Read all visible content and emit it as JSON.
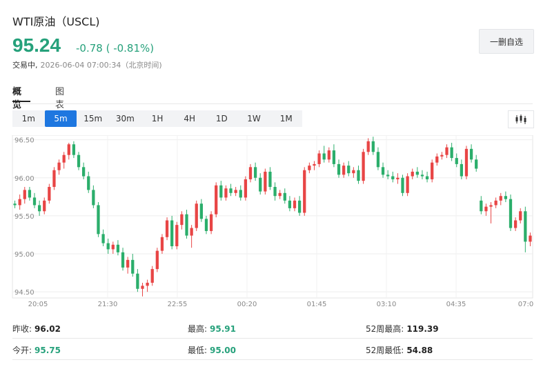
{
  "header": {
    "title": "WTI原油（USCL)",
    "price": "95.24",
    "change": "-0.78 ( -0.81%)",
    "status_label": "交易中,",
    "timestamp": "2026-06-04 07:00:34（北京时间)",
    "watchlist_button": "一删自选"
  },
  "tabs": [
    {
      "label": "概览",
      "active": true
    },
    {
      "label": "图表",
      "active": false
    }
  ],
  "periods": [
    {
      "label": "1m",
      "active": false
    },
    {
      "label": "5m",
      "active": true
    },
    {
      "label": "15m",
      "active": false
    },
    {
      "label": "30m",
      "active": false
    },
    {
      "label": "1H",
      "active": false
    },
    {
      "label": "4H",
      "active": false
    },
    {
      "label": "1D",
      "active": false
    },
    {
      "label": "1W",
      "active": false
    },
    {
      "label": "1M",
      "active": false
    }
  ],
  "chart_type_icon": "candlestick-icon",
  "chart_data": {
    "type": "candlestick",
    "ylim": [
      94.42,
      96.56
    ],
    "yticks": [
      94.5,
      95.0,
      95.5,
      96.0,
      96.5
    ],
    "ytick_labels": [
      "94.50",
      "95.00",
      "95.50",
      "96.00",
      "96.50"
    ],
    "xtick_labels": [
      "20:05",
      "21:30",
      "22:55",
      "00:20",
      "01:45",
      "03:10",
      "04:35",
      "07:0"
    ],
    "grid": true,
    "colors": {
      "up": "#e84545",
      "down": "#2bae6b"
    },
    "candles": [
      [
        95.66,
        95.7,
        95.6,
        95.64
      ],
      [
        95.64,
        95.78,
        95.58,
        95.72
      ],
      [
        95.72,
        95.88,
        95.66,
        95.84
      ],
      [
        95.84,
        95.88,
        95.7,
        95.74
      ],
      [
        95.74,
        95.8,
        95.6,
        95.64
      ],
      [
        95.64,
        95.7,
        95.5,
        95.56
      ],
      [
        95.56,
        95.74,
        95.52,
        95.7
      ],
      [
        95.7,
        95.92,
        95.66,
        95.88
      ],
      [
        95.88,
        96.14,
        95.84,
        96.1
      ],
      [
        96.1,
        96.24,
        96.04,
        96.2
      ],
      [
        96.2,
        96.34,
        96.12,
        96.3
      ],
      [
        96.3,
        96.46,
        96.24,
        96.44
      ],
      [
        96.44,
        96.48,
        96.26,
        96.3
      ],
      [
        96.3,
        96.34,
        96.1,
        96.14
      ],
      [
        96.14,
        96.2,
        95.98,
        96.02
      ],
      [
        96.02,
        96.08,
        95.8,
        95.84
      ],
      [
        95.84,
        95.9,
        95.6,
        95.64
      ],
      [
        95.64,
        95.68,
        95.22,
        95.26
      ],
      [
        95.26,
        95.32,
        95.1,
        95.14
      ],
      [
        95.14,
        95.2,
        95.0,
        95.06
      ],
      [
        95.06,
        95.16,
        95.0,
        95.12
      ],
      [
        95.12,
        95.18,
        94.98,
        95.02
      ],
      [
        95.02,
        95.08,
        94.78,
        94.82
      ],
      [
        94.82,
        94.96,
        94.74,
        94.92
      ],
      [
        94.92,
        95.0,
        94.7,
        94.74
      ],
      [
        94.74,
        94.8,
        94.5,
        94.54
      ],
      [
        94.54,
        94.62,
        94.44,
        94.58
      ],
      [
        94.58,
        94.66,
        94.5,
        94.62
      ],
      [
        94.62,
        94.84,
        94.58,
        94.8
      ],
      [
        94.8,
        95.08,
        94.76,
        95.04
      ],
      [
        95.04,
        95.26,
        95.0,
        95.22
      ],
      [
        95.22,
        95.48,
        95.18,
        95.44
      ],
      [
        95.44,
        95.5,
        95.06,
        95.1
      ],
      [
        95.1,
        95.42,
        95.06,
        95.38
      ],
      [
        95.38,
        95.56,
        95.32,
        95.52
      ],
      [
        95.52,
        95.58,
        95.2,
        95.24
      ],
      [
        95.24,
        95.38,
        95.08,
        95.34
      ],
      [
        95.34,
        95.7,
        95.3,
        95.66
      ],
      [
        95.66,
        95.72,
        95.42,
        95.46
      ],
      [
        95.46,
        95.5,
        95.26,
        95.3
      ],
      [
        95.3,
        95.56,
        95.26,
        95.52
      ],
      [
        95.52,
        95.94,
        95.48,
        95.9
      ],
      [
        95.9,
        95.96,
        95.7,
        95.74
      ],
      [
        95.74,
        95.9,
        95.7,
        95.86
      ],
      [
        95.86,
        95.92,
        95.76,
        95.8
      ],
      [
        95.8,
        95.88,
        95.76,
        95.84
      ],
      [
        95.84,
        95.9,
        95.7,
        95.74
      ],
      [
        95.74,
        96.02,
        95.7,
        95.98
      ],
      [
        95.98,
        96.18,
        95.94,
        96.14
      ],
      [
        96.14,
        96.2,
        95.96,
        96.0
      ],
      [
        96.0,
        96.06,
        95.78,
        95.82
      ],
      [
        95.82,
        96.12,
        95.78,
        96.08
      ],
      [
        96.08,
        96.14,
        95.84,
        95.88
      ],
      [
        95.88,
        95.94,
        95.7,
        95.76
      ],
      [
        95.76,
        95.84,
        95.72,
        95.8
      ],
      [
        95.8,
        95.86,
        95.66,
        95.7
      ],
      [
        95.7,
        95.76,
        95.56,
        95.6
      ],
      [
        95.6,
        95.74,
        95.56,
        95.7
      ],
      [
        95.7,
        95.76,
        95.5,
        95.54
      ],
      [
        95.54,
        96.14,
        95.5,
        96.1
      ],
      [
        96.1,
        96.2,
        96.06,
        96.16
      ],
      [
        96.16,
        96.22,
        96.1,
        96.18
      ],
      [
        96.18,
        96.36,
        96.14,
        96.32
      ],
      [
        96.32,
        96.42,
        96.2,
        96.24
      ],
      [
        96.24,
        96.4,
        96.2,
        96.36
      ],
      [
        96.36,
        96.44,
        96.14,
        96.18
      ],
      [
        96.18,
        96.24,
        96.0,
        96.04
      ],
      [
        96.04,
        96.2,
        96.0,
        96.16
      ],
      [
        96.16,
        96.22,
        96.02,
        96.06
      ],
      [
        96.06,
        96.14,
        96.0,
        96.1
      ],
      [
        96.1,
        96.16,
        95.92,
        95.96
      ],
      [
        95.96,
        96.38,
        95.92,
        96.34
      ],
      [
        96.34,
        96.52,
        96.3,
        96.48
      ],
      [
        96.48,
        96.54,
        96.3,
        96.34
      ],
      [
        96.34,
        96.4,
        96.1,
        96.14
      ],
      [
        96.14,
        96.2,
        96.0,
        96.04
      ],
      [
        96.04,
        96.1,
        95.98,
        96.02
      ],
      [
        96.02,
        96.08,
        95.94,
        95.98
      ],
      [
        95.98,
        96.06,
        95.92,
        96.0
      ],
      [
        96.0,
        96.04,
        95.76,
        95.8
      ],
      [
        95.8,
        96.06,
        95.76,
        96.02
      ],
      [
        96.02,
        96.12,
        95.98,
        96.08
      ],
      [
        96.08,
        96.14,
        96.0,
        96.04
      ],
      [
        96.04,
        96.1,
        95.98,
        96.02
      ],
      [
        96.02,
        96.08,
        95.94,
        95.98
      ],
      [
        95.98,
        96.24,
        95.94,
        96.2
      ],
      [
        96.2,
        96.32,
        96.16,
        96.28
      ],
      [
        96.28,
        96.34,
        96.24,
        96.3
      ],
      [
        96.3,
        96.44,
        96.26,
        96.4
      ],
      [
        96.4,
        96.46,
        96.22,
        96.26
      ],
      [
        96.26,
        96.32,
        96.14,
        96.18
      ],
      [
        96.18,
        96.24,
        95.98,
        96.02
      ],
      [
        96.02,
        96.42,
        95.98,
        96.38
      ],
      [
        96.38,
        96.44,
        96.2,
        96.24
      ],
      [
        96.24,
        96.3,
        96.08,
        96.12
      ],
      [
        95.7,
        95.76,
        95.52,
        95.56
      ],
      [
        95.56,
        95.66,
        95.5,
        95.62
      ],
      [
        95.62,
        95.68,
        95.4,
        95.64
      ],
      [
        95.64,
        95.74,
        95.6,
        95.7
      ],
      [
        95.7,
        95.8,
        95.64,
        95.76
      ],
      [
        95.76,
        95.82,
        95.68,
        95.72
      ],
      [
        95.72,
        95.78,
        95.3,
        95.34
      ],
      [
        95.34,
        95.48,
        95.3,
        95.44
      ],
      [
        95.44,
        95.6,
        95.4,
        95.56
      ],
      [
        95.56,
        95.62,
        95.02,
        95.16
      ],
      [
        95.16,
        95.28,
        95.1,
        95.24
      ]
    ]
  },
  "stats": [
    [
      {
        "label": "昨收:",
        "value": "96.02",
        "color": "#222222"
      },
      {
        "label": "最高:",
        "value": "95.91",
        "color": "#26a17b"
      },
      {
        "label": "52周最高:",
        "value": "119.39",
        "color": "#222222"
      }
    ],
    [
      {
        "label": "今开:",
        "value": "95.75",
        "color": "#26a17b"
      },
      {
        "label": "最低:",
        "value": "95.00",
        "color": "#26a17b"
      },
      {
        "label": "52周最低:",
        "value": "54.88",
        "color": "#222222"
      }
    ]
  ]
}
